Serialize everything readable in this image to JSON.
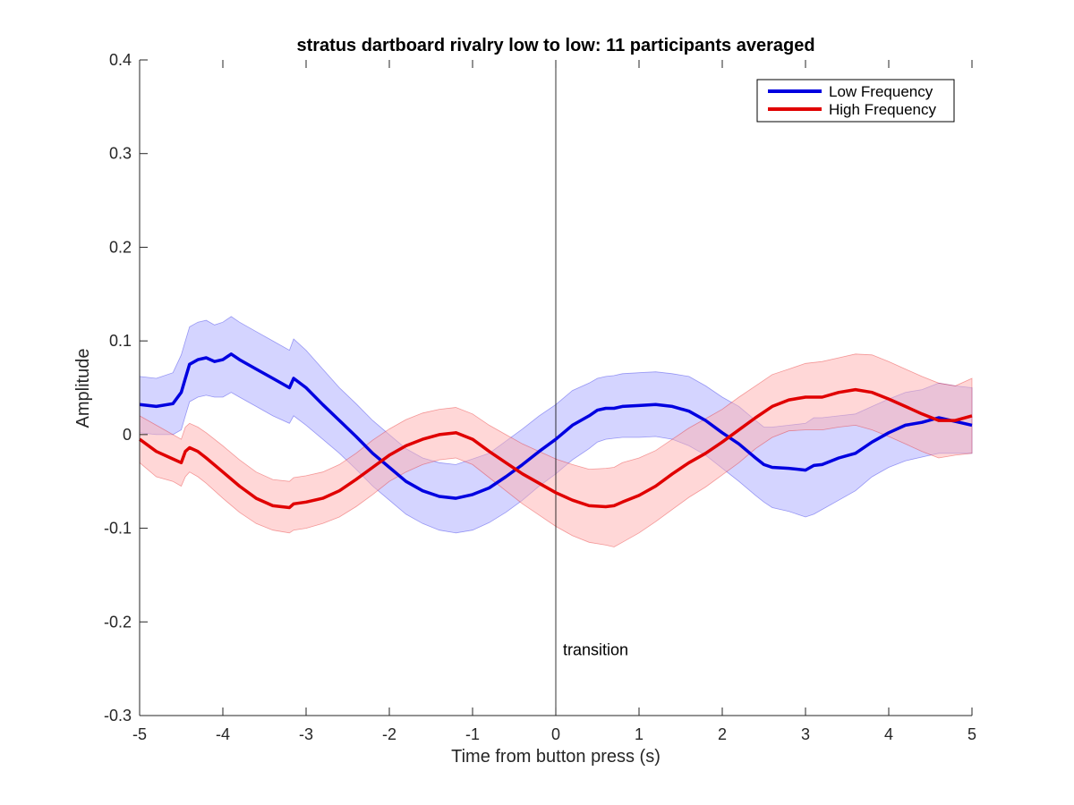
{
  "chart_data": {
    "type": "line",
    "title": "stratus dartboard rivalry low to low: 11 participants averaged",
    "xlabel": "Time from button press (s)",
    "ylabel": "Amplitude",
    "xlim": [
      -5,
      5
    ],
    "ylim": [
      -0.3,
      0.4
    ],
    "xticks": [
      -5,
      -4,
      -3,
      -2,
      -1,
      0,
      1,
      2,
      3,
      4,
      5
    ],
    "yticks": [
      -0.3,
      -0.2,
      -0.1,
      0,
      0.1,
      0.2,
      0.3,
      0.4
    ],
    "xtick_labels": [
      "-5",
      "-4",
      "-3",
      "-2",
      "-1",
      "0",
      "1",
      "2",
      "3",
      "4",
      "5"
    ],
    "ytick_labels": [
      "-0.3",
      "-0.2",
      "-0.1",
      "0",
      "0.1",
      "0.2",
      "0.3",
      "0.4"
    ],
    "grid": false,
    "legend_position": "top-right",
    "vertical_line": {
      "x": 0,
      "label": "transition",
      "label_y": -0.23
    },
    "series": [
      {
        "name": "Low Frequency",
        "color": "#0000e0",
        "band_color": "#aaaaff",
        "x": [
          -5,
          -4.8,
          -4.6,
          -4.5,
          -4.45,
          -4.4,
          -4.3,
          -4.2,
          -4.1,
          -4.0,
          -3.9,
          -3.8,
          -3.6,
          -3.4,
          -3.2,
          -3.15,
          -3.0,
          -2.8,
          -2.6,
          -2.4,
          -2.2,
          -2.0,
          -1.8,
          -1.6,
          -1.4,
          -1.2,
          -1.0,
          -0.8,
          -0.6,
          -0.4,
          -0.2,
          0.0,
          0.2,
          0.4,
          0.5,
          0.6,
          0.7,
          0.8,
          1.0,
          1.2,
          1.4,
          1.6,
          1.8,
          2.0,
          2.2,
          2.4,
          2.5,
          2.6,
          2.8,
          3.0,
          3.1,
          3.2,
          3.4,
          3.6,
          3.8,
          4.0,
          4.2,
          4.4,
          4.6,
          4.8,
          5.0
        ],
        "y": [
          0.032,
          0.03,
          0.033,
          0.045,
          0.06,
          0.075,
          0.08,
          0.082,
          0.078,
          0.08,
          0.086,
          0.08,
          0.07,
          0.06,
          0.05,
          0.06,
          0.05,
          0.032,
          0.015,
          -0.002,
          -0.02,
          -0.035,
          -0.05,
          -0.06,
          -0.066,
          -0.068,
          -0.064,
          -0.057,
          -0.045,
          -0.032,
          -0.018,
          -0.005,
          0.01,
          0.02,
          0.026,
          0.028,
          0.028,
          0.03,
          0.031,
          0.032,
          0.03,
          0.025,
          0.015,
          0.002,
          -0.01,
          -0.025,
          -0.032,
          -0.035,
          -0.036,
          -0.038,
          -0.033,
          -0.032,
          -0.025,
          -0.02,
          -0.008,
          0.002,
          0.01,
          0.013,
          0.018,
          0.014,
          0.01
        ],
        "lower": [
          0.002,
          0.0,
          0.0,
          0.005,
          0.02,
          0.035,
          0.04,
          0.042,
          0.04,
          0.04,
          0.045,
          0.04,
          0.03,
          0.02,
          0.012,
          0.02,
          0.01,
          -0.005,
          -0.02,
          -0.037,
          -0.055,
          -0.07,
          -0.085,
          -0.095,
          -0.102,
          -0.105,
          -0.102,
          -0.094,
          -0.083,
          -0.07,
          -0.055,
          -0.042,
          -0.027,
          -0.015,
          -0.008,
          -0.005,
          -0.004,
          -0.003,
          -0.003,
          -0.002,
          -0.005,
          -0.012,
          -0.022,
          -0.036,
          -0.05,
          -0.065,
          -0.072,
          -0.078,
          -0.082,
          -0.088,
          -0.085,
          -0.08,
          -0.07,
          -0.06,
          -0.045,
          -0.035,
          -0.028,
          -0.024,
          -0.02,
          -0.02,
          -0.02
        ],
        "upper": [
          0.062,
          0.06,
          0.066,
          0.085,
          0.1,
          0.115,
          0.12,
          0.122,
          0.117,
          0.12,
          0.126,
          0.12,
          0.11,
          0.1,
          0.09,
          0.102,
          0.09,
          0.07,
          0.05,
          0.033,
          0.015,
          0.0,
          -0.015,
          -0.025,
          -0.03,
          -0.032,
          -0.026,
          -0.02,
          -0.007,
          0.006,
          0.02,
          0.032,
          0.047,
          0.055,
          0.06,
          0.062,
          0.063,
          0.065,
          0.066,
          0.067,
          0.065,
          0.062,
          0.052,
          0.04,
          0.03,
          0.015,
          0.008,
          0.008,
          0.01,
          0.012,
          0.018,
          0.018,
          0.02,
          0.022,
          0.03,
          0.038,
          0.045,
          0.048,
          0.055,
          0.052,
          0.05
        ]
      },
      {
        "name": "High Frequency",
        "color": "#e00000",
        "band_color": "#ffb0b0",
        "x": [
          -5,
          -4.8,
          -4.6,
          -4.5,
          -4.45,
          -4.4,
          -4.3,
          -4.2,
          -4.0,
          -3.8,
          -3.6,
          -3.4,
          -3.2,
          -3.15,
          -3.0,
          -2.8,
          -2.6,
          -2.4,
          -2.2,
          -2.0,
          -1.8,
          -1.6,
          -1.4,
          -1.2,
          -1.0,
          -0.8,
          -0.6,
          -0.4,
          -0.2,
          0.0,
          0.2,
          0.4,
          0.6,
          0.7,
          0.8,
          1.0,
          1.2,
          1.4,
          1.6,
          1.8,
          2.0,
          2.2,
          2.4,
          2.6,
          2.8,
          3.0,
          3.2,
          3.4,
          3.6,
          3.8,
          4.0,
          4.2,
          4.4,
          4.6,
          4.8,
          5.0
        ],
        "y": [
          -0.005,
          -0.018,
          -0.026,
          -0.03,
          -0.018,
          -0.014,
          -0.018,
          -0.025,
          -0.04,
          -0.055,
          -0.068,
          -0.076,
          -0.078,
          -0.074,
          -0.072,
          -0.068,
          -0.06,
          -0.048,
          -0.035,
          -0.022,
          -0.012,
          -0.005,
          0.0,
          0.002,
          -0.005,
          -0.018,
          -0.03,
          -0.042,
          -0.052,
          -0.062,
          -0.07,
          -0.076,
          -0.077,
          -0.076,
          -0.072,
          -0.065,
          -0.055,
          -0.042,
          -0.03,
          -0.02,
          -0.008,
          0.005,
          0.018,
          0.03,
          0.037,
          0.04,
          0.04,
          0.045,
          0.048,
          0.045,
          0.038,
          0.03,
          0.022,
          0.015,
          0.015,
          0.02
        ],
        "lower": [
          -0.03,
          -0.045,
          -0.05,
          -0.055,
          -0.045,
          -0.04,
          -0.045,
          -0.052,
          -0.068,
          -0.083,
          -0.095,
          -0.102,
          -0.105,
          -0.102,
          -0.1,
          -0.095,
          -0.088,
          -0.077,
          -0.064,
          -0.05,
          -0.04,
          -0.032,
          -0.027,
          -0.025,
          -0.032,
          -0.046,
          -0.06,
          -0.074,
          -0.086,
          -0.098,
          -0.108,
          -0.115,
          -0.118,
          -0.12,
          -0.115,
          -0.105,
          -0.093,
          -0.08,
          -0.067,
          -0.056,
          -0.043,
          -0.03,
          -0.015,
          -0.003,
          0.004,
          0.005,
          0.005,
          0.008,
          0.01,
          0.005,
          -0.002,
          -0.01,
          -0.018,
          -0.025,
          -0.022,
          -0.02
        ],
        "upper": [
          0.02,
          0.01,
          0.0,
          -0.005,
          0.008,
          0.012,
          0.008,
          0.002,
          -0.012,
          -0.027,
          -0.04,
          -0.048,
          -0.05,
          -0.046,
          -0.044,
          -0.04,
          -0.032,
          -0.02,
          -0.006,
          0.006,
          0.016,
          0.023,
          0.027,
          0.029,
          0.022,
          0.01,
          0.0,
          -0.01,
          -0.018,
          -0.026,
          -0.032,
          -0.037,
          -0.036,
          -0.035,
          -0.03,
          -0.025,
          -0.017,
          -0.005,
          0.007,
          0.017,
          0.027,
          0.04,
          0.052,
          0.064,
          0.07,
          0.076,
          0.078,
          0.082,
          0.086,
          0.085,
          0.078,
          0.07,
          0.062,
          0.055,
          0.052,
          0.06
        ]
      }
    ]
  }
}
